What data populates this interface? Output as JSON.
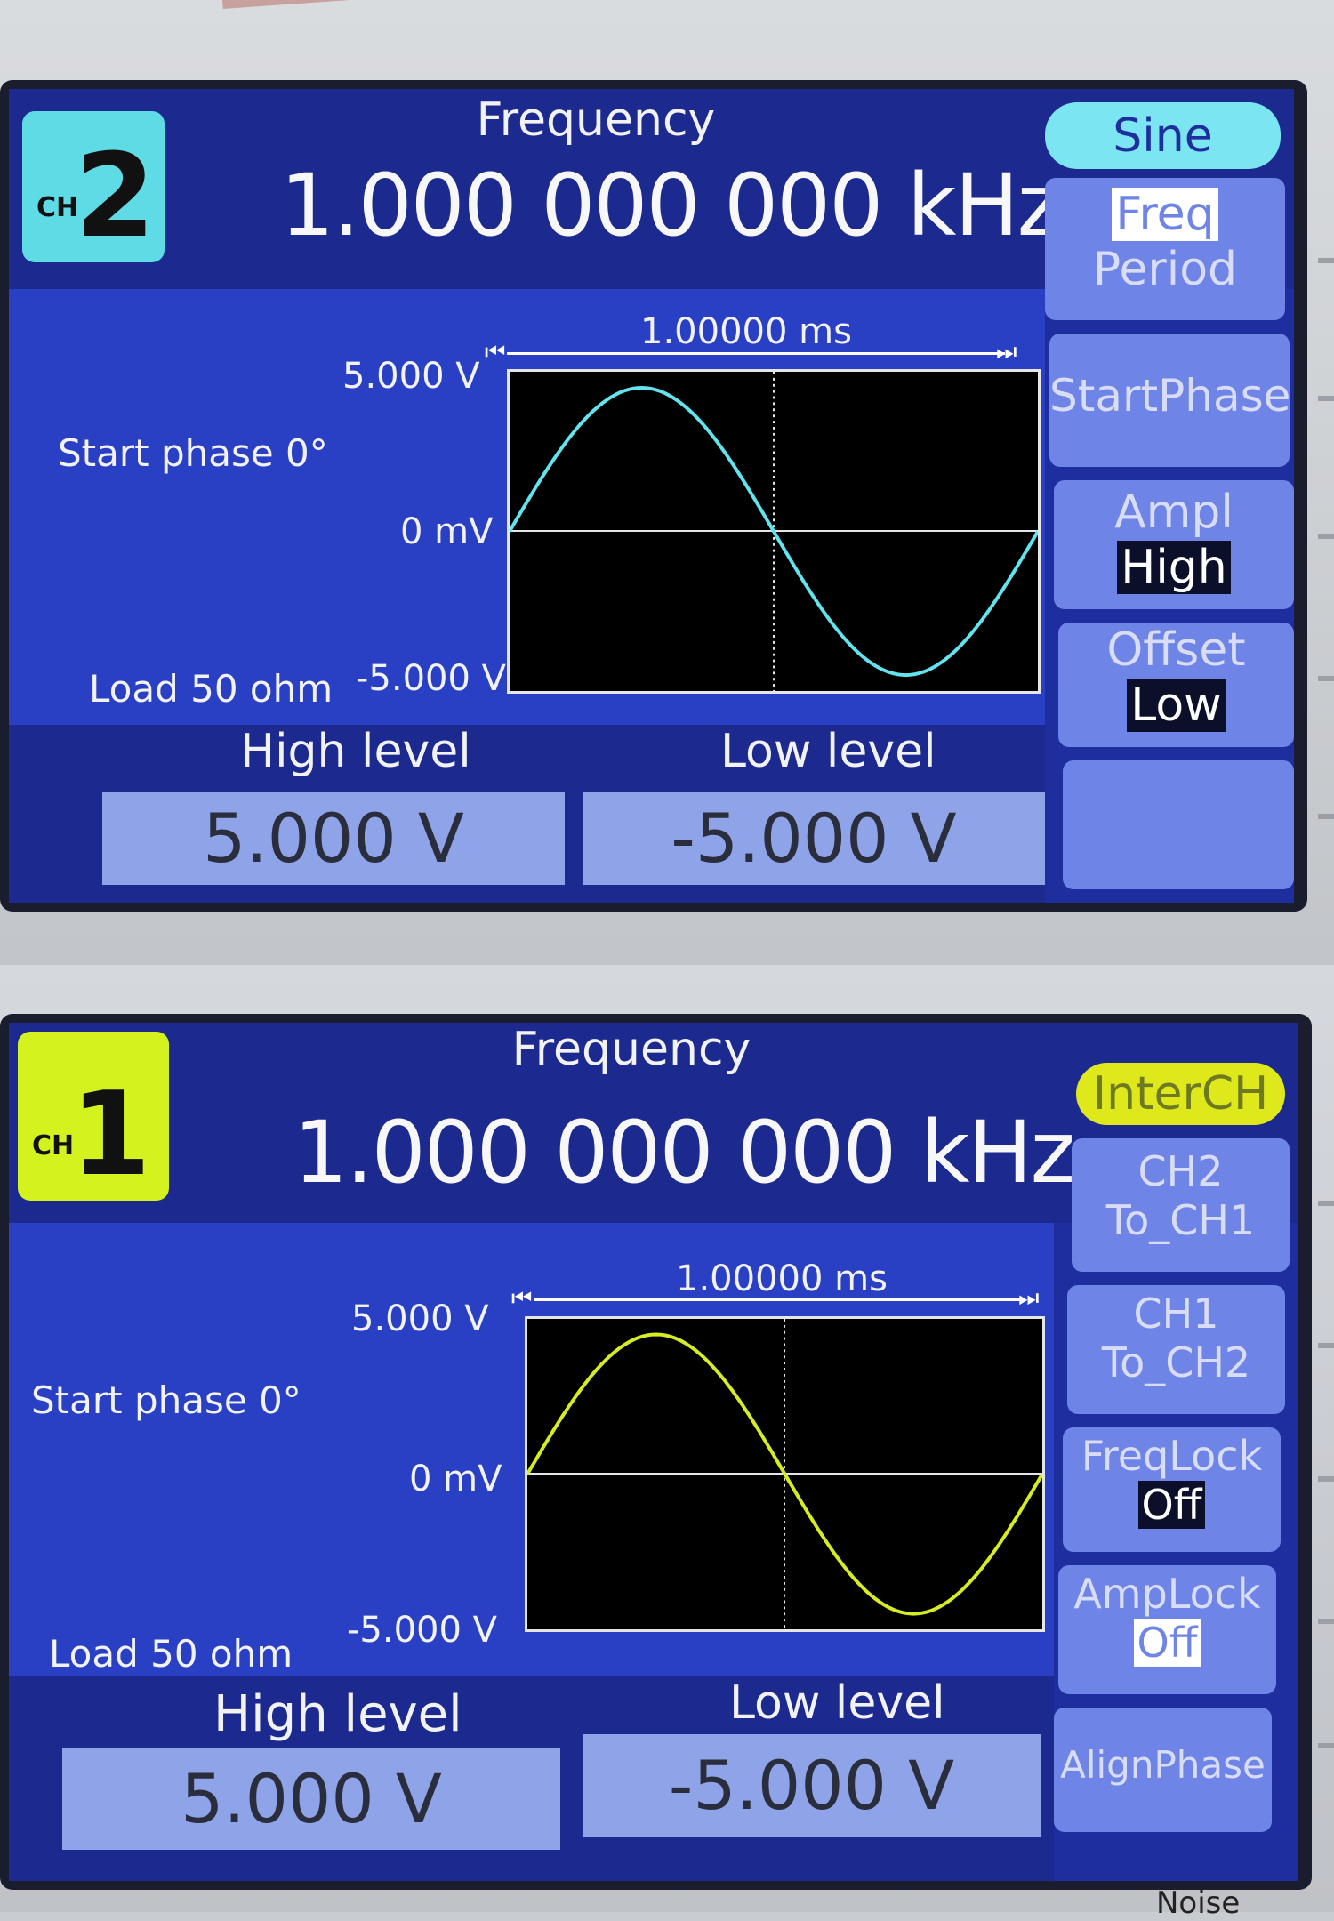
{
  "panels": [
    {
      "channel_badge": {
        "ch_label": "CH",
        "number": "2",
        "color": "#5fdbe6"
      },
      "frequency_label": "Frequency",
      "frequency_value": "1.000 000 000 kHz",
      "span_label": "1.00000 ms",
      "y_max_label": "5.000 V",
      "y_zero_label": "0 mV",
      "y_min_label": "-5.000 V",
      "start_phase": "Start phase 0°",
      "load": "Load 50 ohm",
      "high_level_label": "High level",
      "low_level_label": "Low level",
      "high_level_value": "5.000 V",
      "low_level_value": "-5.000 V",
      "trace_color": "#63e3ee",
      "menu": {
        "header": "Sine",
        "header_color": "#7be6f2",
        "keys": [
          {
            "line1": "Freq",
            "line2": "Period",
            "line1_style": "hi"
          },
          {
            "line1": "StartPhase",
            "line2": ""
          },
          {
            "line1": "Ampl",
            "line2": "High",
            "line2_style": "sel"
          },
          {
            "line1": "Offset",
            "line2": "Low",
            "line2_style": "sel"
          },
          {
            "line1": "",
            "line2": ""
          }
        ]
      }
    },
    {
      "channel_badge": {
        "ch_label": "CH",
        "number": "1",
        "color": "#d4f21e"
      },
      "frequency_label": "Frequency",
      "frequency_value": "1.000 000 000 kHz",
      "span_label": "1.00000 ms",
      "y_max_label": "5.000 V",
      "y_zero_label": "0 mV",
      "y_min_label": "-5.000 V",
      "start_phase": "Start phase 0°",
      "load": "Load 50 ohm",
      "high_level_label": "High level",
      "low_level_label": "Low level",
      "high_level_value": "5.000 V",
      "low_level_value": "-5.000 V",
      "trace_color": "#d8ec22",
      "menu": {
        "header": "InterCH",
        "header_color": "#dfe81a",
        "keys": [
          {
            "line1": "CH2",
            "line2": "To_CH1"
          },
          {
            "line1": "CH1",
            "line2": "To_CH2"
          },
          {
            "line1": "FreqLock",
            "line2": "Off",
            "line2_style": "sel"
          },
          {
            "line1": "AmpLock",
            "line2": "Off",
            "line2_style": "hi"
          },
          {
            "line1": "AlignPhase",
            "line2": ""
          }
        ]
      }
    }
  ],
  "footer_text": "Noise"
}
